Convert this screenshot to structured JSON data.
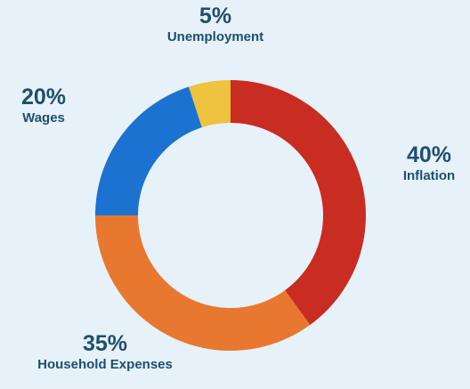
{
  "chart_data": {
    "type": "pie",
    "variant": "donut",
    "start_angle_deg": 0,
    "direction": "clockwise",
    "slices": [
      {
        "name": "Inflation",
        "percent_label": "40%",
        "value": 40,
        "color": "#c92c21"
      },
      {
        "name": "Household Expenses",
        "percent_label": "35%",
        "value": 35,
        "color": "#e8782f"
      },
      {
        "name": "Wages",
        "percent_label": "20%",
        "value": 20,
        "color": "#1b72d1"
      },
      {
        "name": "Unemployment",
        "percent_label": "5%",
        "value": 5,
        "color": "#eec33f"
      }
    ],
    "hole_color": "#e7f1fa",
    "label_color": "#1e4f6e"
  }
}
